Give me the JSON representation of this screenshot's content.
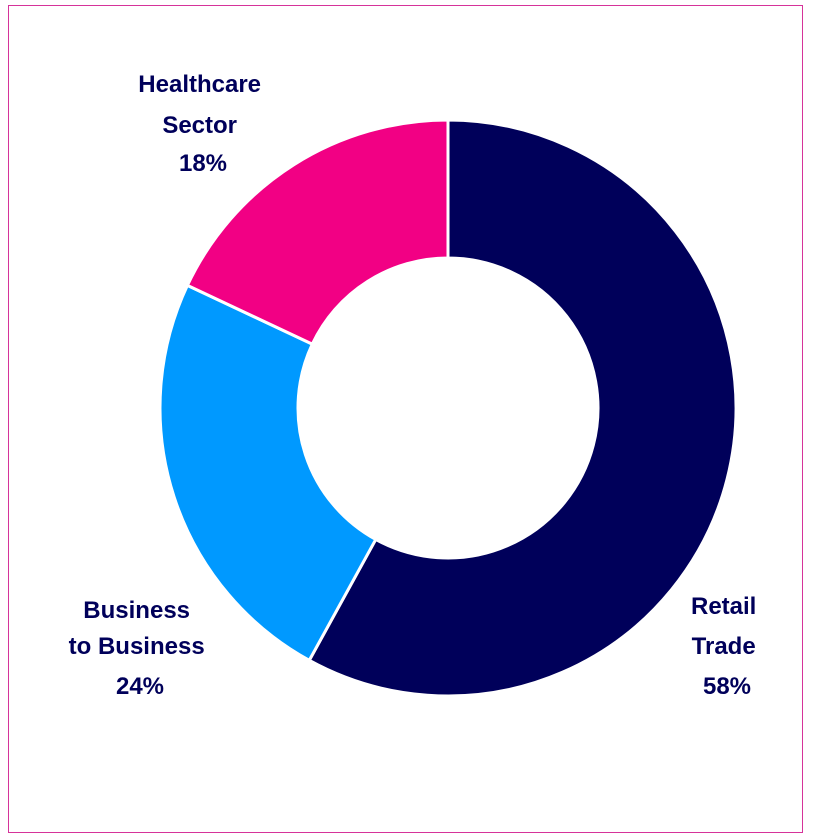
{
  "chart_data": {
    "type": "pie",
    "style": "donut",
    "slices": [
      {
        "label_lines": [
          "Retail",
          "Trade"
        ],
        "pct_label": "58%",
        "value": 58,
        "color": "#00005a"
      },
      {
        "label_lines": [
          "Business",
          "to Business"
        ],
        "pct_label": "24%",
        "value": 24,
        "color": "#0099ff"
      },
      {
        "label_lines": [
          "Healthcare",
          "Sector"
        ],
        "pct_label": "18%",
        "value": 18,
        "color": "#f20084"
      }
    ],
    "start": "12 o'clock",
    "direction": "clockwise",
    "legend": "none",
    "border_color": "#d6339a"
  }
}
